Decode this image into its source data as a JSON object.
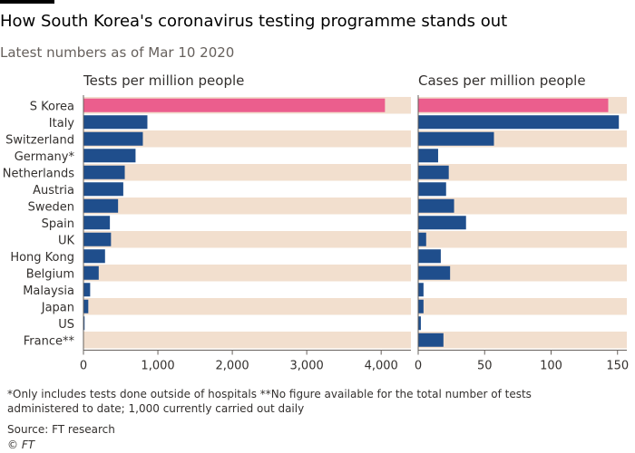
{
  "header": {
    "title": "How South Korea's coronavirus testing programme stands out",
    "subtitle": "Latest numbers as of Mar 10 2020"
  },
  "chart_data": {
    "type": "bar",
    "orientation": "horizontal",
    "categories": [
      "S Korea",
      "Italy",
      "Switzerland",
      "Germany*",
      "Netherlands",
      "Austria",
      "Sweden",
      "Spain",
      "UK",
      "Hong Kong",
      "Belgium",
      "Malaysia",
      "Japan",
      "US",
      "France**"
    ],
    "highlight_category": "S Korea",
    "panels": [
      {
        "title": "Tests per million people",
        "values": [
          4051,
          859,
          798,
          700,
          555,
          535,
          465,
          355,
          370,
          290,
          205,
          90,
          65,
          15,
          null
        ],
        "xlim": [
          0,
          4400
        ],
        "ticks": [
          0,
          1000,
          2000,
          3000,
          4000
        ],
        "tick_labels": [
          "0",
          "1,000",
          "2,000",
          "3,000",
          "4,000"
        ]
      },
      {
        "title": "Cases per million people",
        "values": [
          143,
          151,
          57,
          15,
          23,
          21,
          27,
          36,
          6,
          17,
          24,
          4,
          4,
          2,
          19
        ],
        "xlim": [
          0,
          157
        ],
        "ticks": [
          0,
          50,
          100,
          150
        ],
        "tick_labels": [
          "0",
          "50",
          "100",
          "150"
        ]
      }
    ],
    "colors": {
      "bar": "#1f4e8c",
      "highlight": "#eb5e8d",
      "band": "#f2dfce",
      "axis": "#66605c"
    }
  },
  "footnote": "*Only includes tests done outside of hospitals **No figure available for the total number of tests administered to date; 1,000 currently carried out daily",
  "source": "Source: FT research",
  "credit": "© FT"
}
